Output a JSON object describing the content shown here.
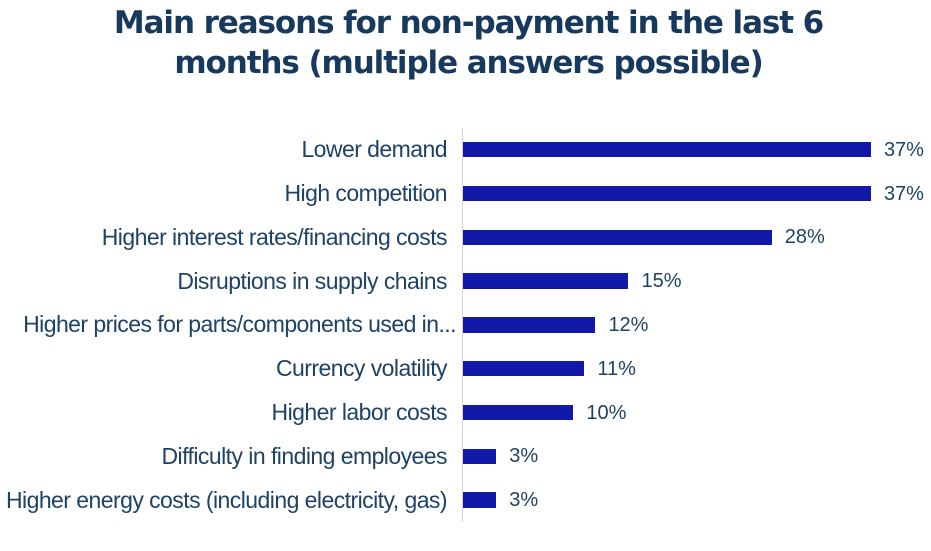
{
  "title": {
    "text": "Main reasons for non-payment in the last 6 months (multiple answers possible)",
    "color": "#17395e"
  },
  "chart_data": {
    "type": "bar",
    "orientation": "horizontal",
    "title": "Main reasons for non-payment in the last 6 months (multiple answers possible)",
    "categories": [
      "Lower demand",
      "High competition",
      "Higher interest rates/financing costs",
      "Disruptions in supply chains",
      "Higher prices for parts/components used in...",
      "Currency volatility",
      "Higher labor costs",
      "Difficulty in finding employees",
      "Higher energy costs (including electricity, gas)"
    ],
    "values": [
      37,
      37,
      28,
      15,
      12,
      11,
      10,
      3,
      3
    ],
    "data_labels": [
      "37%",
      "37%",
      "28%",
      "15%",
      "12%",
      "11%",
      "10%",
      "3%",
      "3%"
    ],
    "unit": "percent",
    "xlim": [
      0,
      42
    ],
    "grid": false,
    "legend": false,
    "bar_color": "#1219a8",
    "category_label_color": "#1e4265",
    "value_label_color": "#1e4265",
    "axis_line_color": "#d6d4d4",
    "background_color": "#ffffff"
  }
}
